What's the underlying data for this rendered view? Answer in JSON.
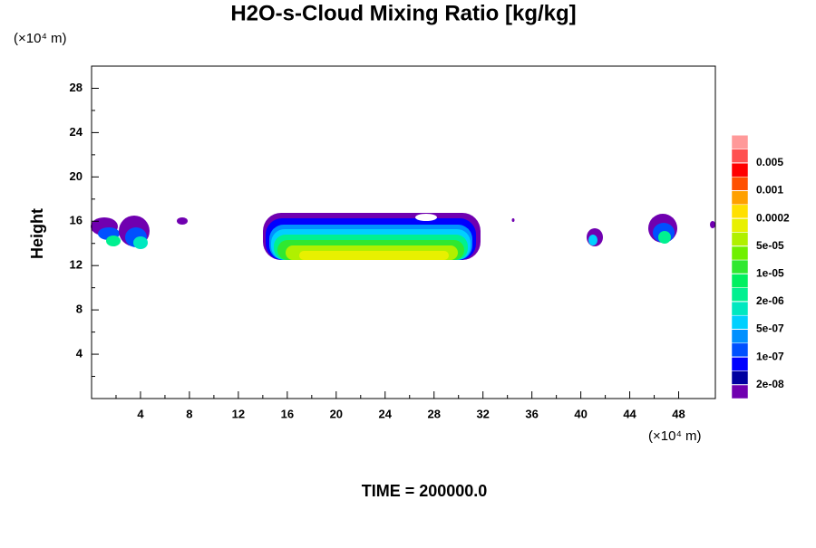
{
  "chart_data": {
    "type": "contour",
    "title": "H2O-s-Cloud Mixing Ratio [kg/kg]",
    "y_label": "Height",
    "x_unit": "(×10⁴ m)",
    "y_unit": "(×10⁴ m)",
    "annotation": "TIME = 200000.0",
    "xlim": [
      0,
      51
    ],
    "xticks": [
      4,
      8,
      12,
      16,
      20,
      24,
      28,
      32,
      36,
      40,
      44,
      48
    ],
    "ylim": [
      0,
      30
    ],
    "yticks": [
      4,
      8,
      12,
      16,
      20,
      24,
      28
    ],
    "colorbar_ticks": [
      {
        "value": 2e-08,
        "label": "2e-08"
      },
      {
        "value": 1e-07,
        "label": "1e-07"
      },
      {
        "value": 5e-07,
        "label": "5e-07"
      },
      {
        "value": 2e-06,
        "label": "2e-06"
      },
      {
        "value": 1e-05,
        "label": "1e-05"
      },
      {
        "value": 5e-05,
        "label": "5e-05"
      },
      0.0002,
      0.001,
      0.005
    ],
    "colors": [
      "#7000b0",
      "#0000a0",
      "#0000ff",
      "#0050ff",
      "#0090ff",
      "#00d0ff",
      "#00e8c0",
      "#00f090",
      "#00f060",
      "#30e830",
      "#70f000",
      "#b0f000",
      "#e8f000",
      "#ffe000",
      "#ffa000",
      "#ff5000",
      "#ff0000",
      "#ff5050",
      "#ff9999"
    ]
  }
}
